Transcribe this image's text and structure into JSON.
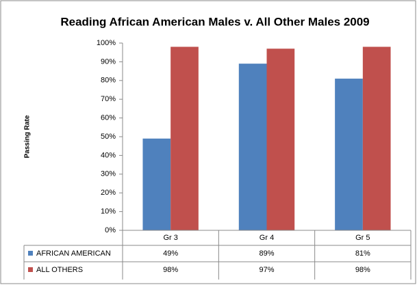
{
  "chart_data": {
    "type": "bar",
    "title": "Reading African American Males v. All Other Males 2009",
    "y_label": "Passing Rate",
    "categories": [
      "Gr 3",
      "Gr 4",
      "Gr 5"
    ],
    "series": [
      {
        "name": "AFRICAN AMERICAN",
        "color": "#4f81bd",
        "values": [
          49,
          89,
          81
        ],
        "value_labels": [
          "49%",
          "89%",
          "81%"
        ]
      },
      {
        "name": "ALL OTHERS",
        "color": "#c0504d",
        "values": [
          98,
          97,
          98
        ],
        "value_labels": [
          "98%",
          "97%",
          "98%"
        ]
      }
    ],
    "ylim": [
      0,
      100
    ],
    "yticks": [
      {
        "value": 0,
        "label": "0%"
      },
      {
        "value": 10,
        "label": "10%"
      },
      {
        "value": 20,
        "label": "20%"
      },
      {
        "value": 30,
        "label": "30%"
      },
      {
        "value": 40,
        "label": "40%"
      },
      {
        "value": 50,
        "label": "50%"
      },
      {
        "value": 60,
        "label": "60%"
      },
      {
        "value": 70,
        "label": "70%"
      },
      {
        "value": 80,
        "label": "80%"
      },
      {
        "value": 90,
        "label": "90%"
      },
      {
        "value": 100,
        "label": "100%"
      }
    ],
    "grid": false,
    "data_table": true
  }
}
